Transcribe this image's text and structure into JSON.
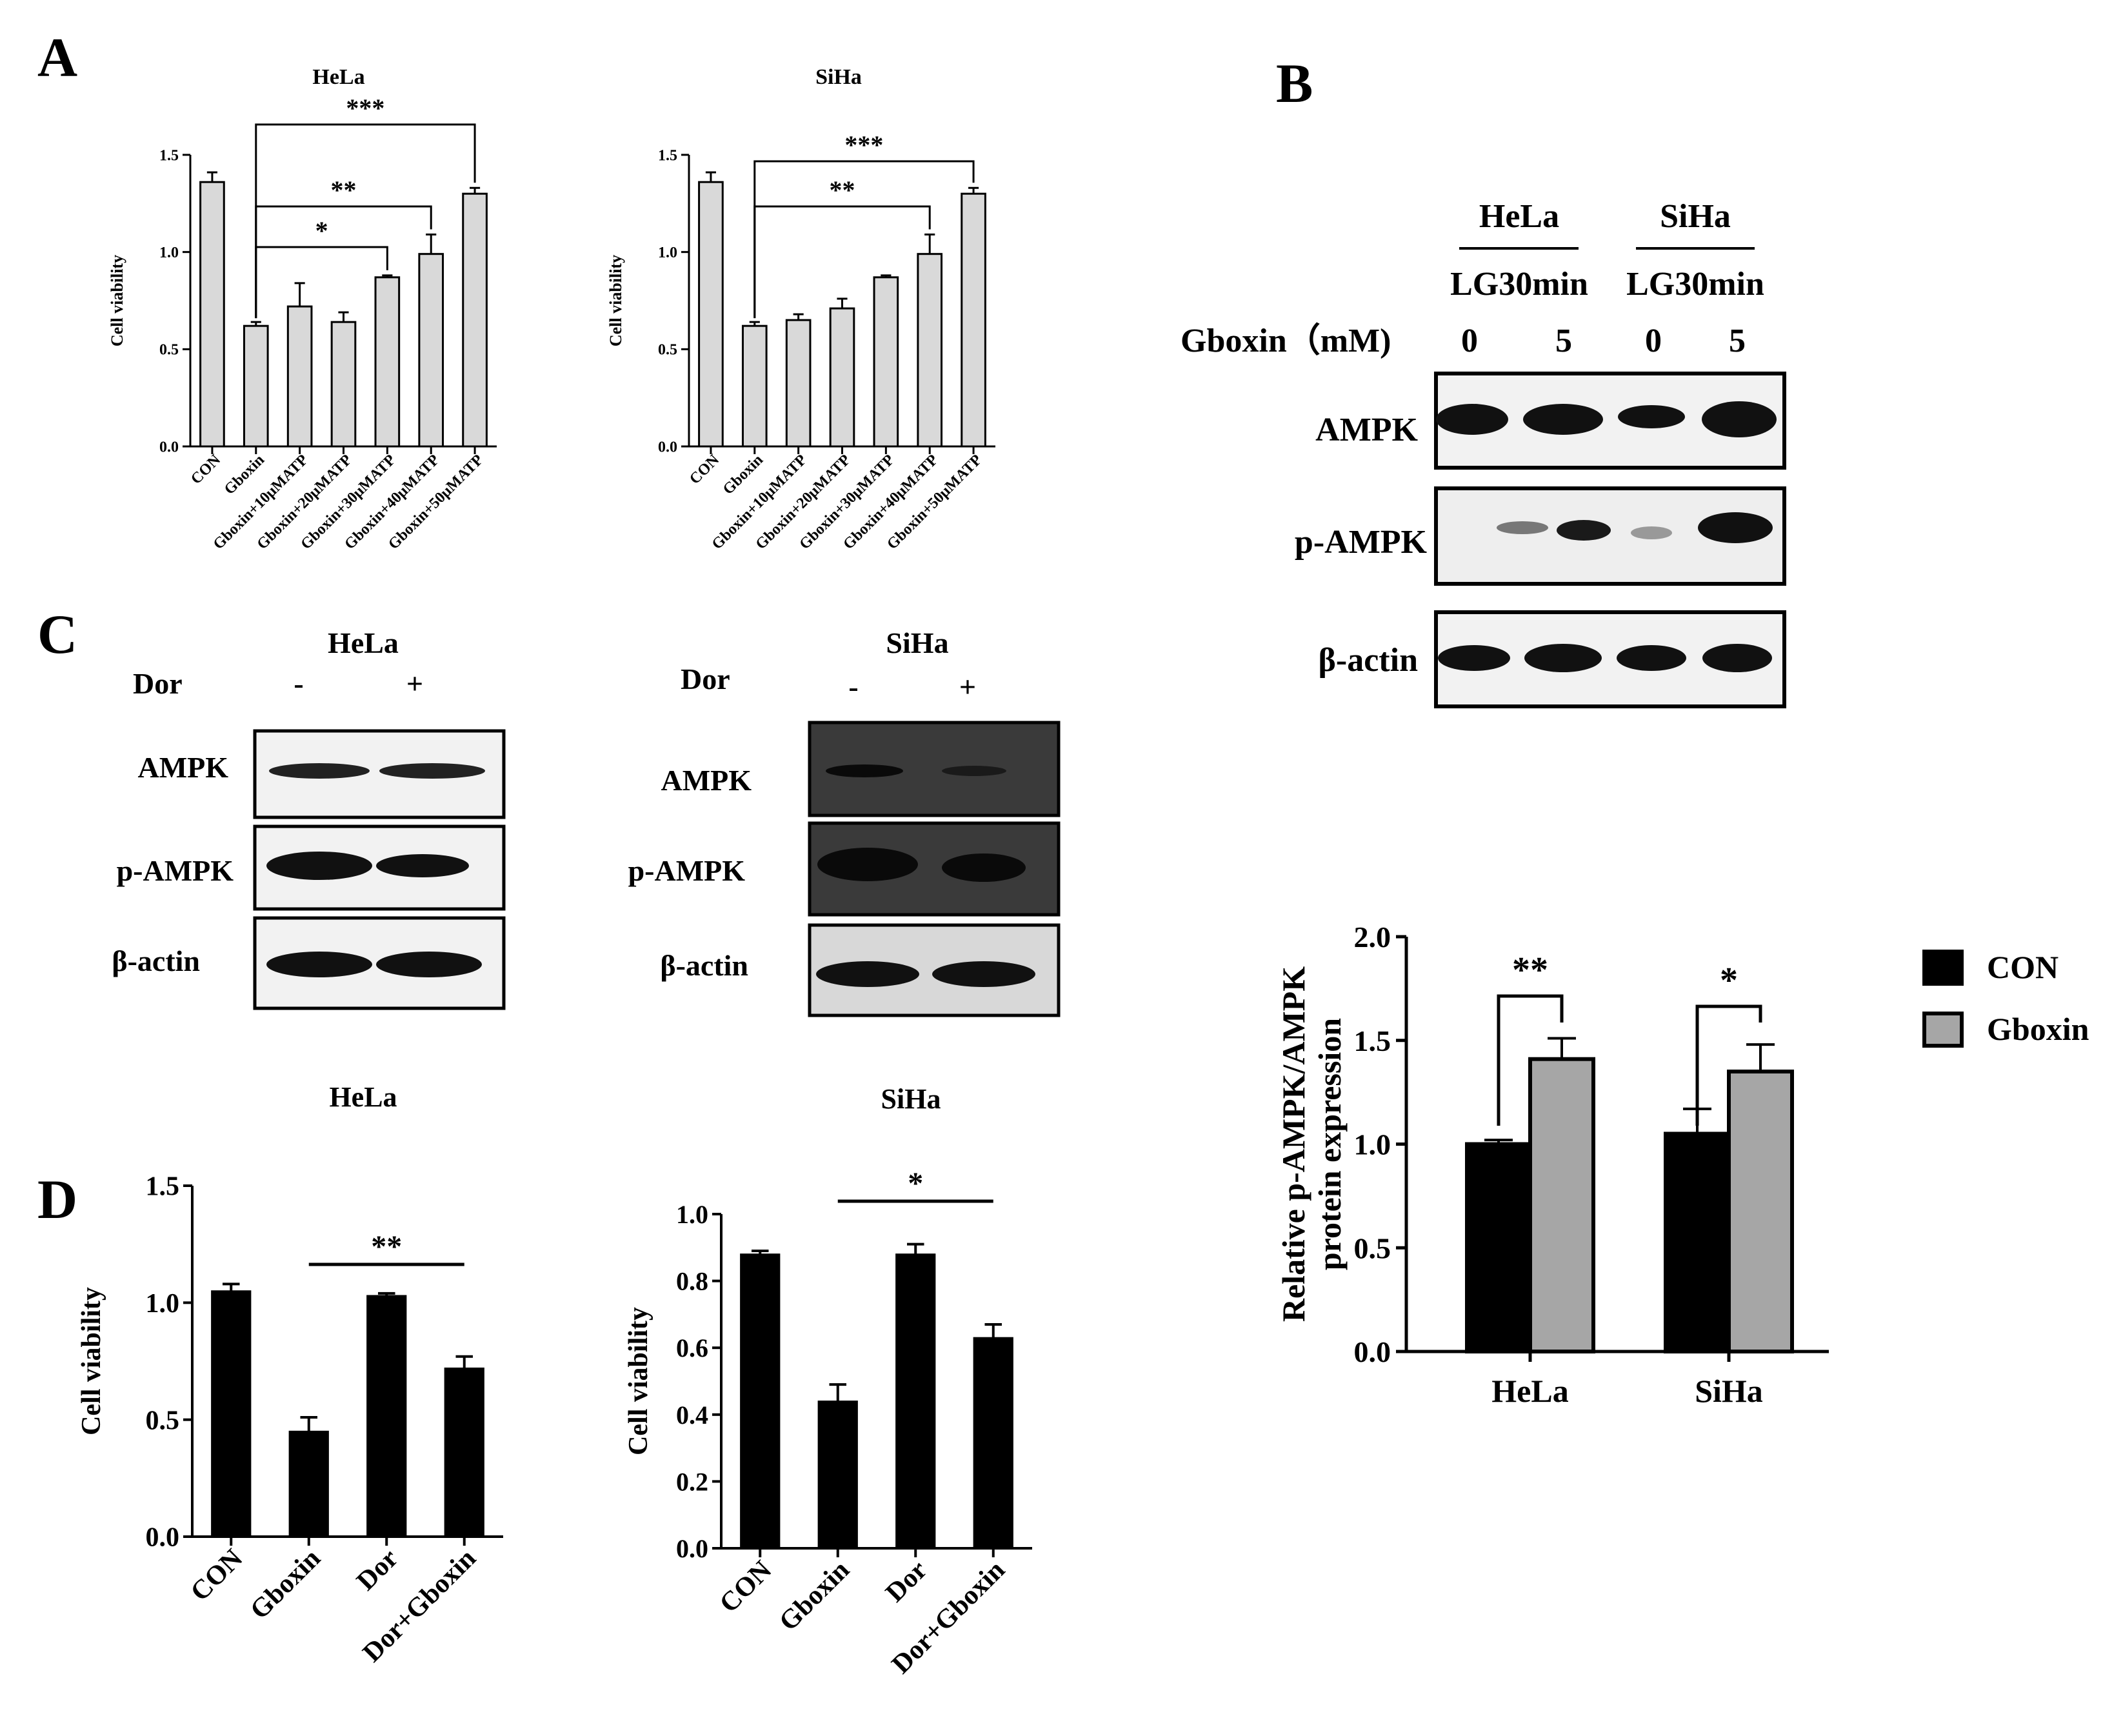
{
  "panels": {
    "A": {
      "letter": "A"
    },
    "B": {
      "letter": "B"
    },
    "C": {
      "letter": "C"
    },
    "D": {
      "letter": "D"
    }
  },
  "colors": {
    "black": "#000000",
    "light_bar": "#d9d9d9",
    "gray_bar": "#a6a6a6",
    "blot_bg": "#f2f2f2",
    "band": "#111111"
  },
  "blots": {
    "b": {
      "groups": [
        "HeLa",
        "SiHa"
      ],
      "condition": [
        "LG30min",
        "LG30min"
      ],
      "treatment_label": "Gboxin（mM)",
      "doses": [
        "0",
        "5",
        "0",
        "5"
      ],
      "rows": [
        "AMPK",
        "p-AMPK",
        "β-actin"
      ]
    },
    "c_hela": {
      "title": "HeLa",
      "treatment_label": "Dor",
      "lanes": [
        "-",
        "+"
      ],
      "rows": [
        "AMPK",
        "p-AMPK",
        "β-actin"
      ]
    },
    "c_siha": {
      "title": "SiHa",
      "treatment_label": "Dor",
      "lanes": [
        "-",
        "+"
      ],
      "rows": [
        "AMPK",
        "p-AMPK",
        "β-actin"
      ]
    }
  },
  "chart_data": [
    {
      "id": "A-HeLa",
      "type": "bar",
      "title": "HeLa",
      "ylabel": "Cell viability",
      "xlabel": "",
      "categories": [
        "CON",
        "Gboxin",
        "Gboxin+10μMATP",
        "Gboxin+20μMATP",
        "Gboxin+30μMATP",
        "Gboxin+40μMATP",
        "Gboxin+50μMATP"
      ],
      "values": [
        1.36,
        0.62,
        0.72,
        0.64,
        0.87,
        0.99,
        1.3
      ],
      "errors": [
        0.05,
        0.02,
        0.12,
        0.05,
        0.01,
        0.1,
        0.03
      ],
      "ylim": [
        0,
        1.5
      ],
      "yticks": [
        "0.0",
        "0.5",
        "1.0",
        "1.5"
      ],
      "significance": [
        {
          "from": 1,
          "to": 4,
          "label": "*"
        },
        {
          "from": 1,
          "to": 5,
          "label": "**"
        },
        {
          "from": 1,
          "to": 6,
          "label": "***"
        }
      ]
    },
    {
      "id": "A-SiHa",
      "type": "bar",
      "title": "SiHa",
      "ylabel": "Cell viability",
      "xlabel": "",
      "categories": [
        "CON",
        "Gboxin",
        "Gboxin+10μMATP",
        "Gboxin+20μMATP",
        "Gboxin+30μMATP",
        "Gboxin+40μMATP",
        "Gboxin+50μMATP"
      ],
      "values": [
        1.36,
        0.62,
        0.65,
        0.71,
        0.87,
        0.99,
        1.3
      ],
      "errors": [
        0.05,
        0.02,
        0.03,
        0.05,
        0.01,
        0.1,
        0.03
      ],
      "ylim": [
        0,
        1.5
      ],
      "yticks": [
        "0.0",
        "0.5",
        "1.0",
        "1.5"
      ],
      "significance": [
        {
          "from": 1,
          "to": 5,
          "label": "**"
        },
        {
          "from": 1,
          "to": 6,
          "label": "***"
        }
      ]
    },
    {
      "id": "B-quant",
      "type": "bar",
      "title": "",
      "ylabel": "Relative p-AMPK/AMPK protein expression",
      "xlabel": "",
      "categories": [
        "HeLa",
        "SiHa"
      ],
      "series": [
        {
          "name": "CON",
          "values": [
            1.0,
            1.05
          ],
          "errors": [
            0.02,
            0.12
          ]
        },
        {
          "name": "Gboxin",
          "values": [
            1.41,
            1.35
          ],
          "errors": [
            0.1,
            0.13
          ]
        }
      ],
      "ylim": [
        0,
        2.0
      ],
      "yticks": [
        "0.0",
        "0.5",
        "1.0",
        "1.5",
        "2.0"
      ],
      "legend": "right",
      "significance": [
        {
          "category": 0,
          "label": "**"
        },
        {
          "category": 1,
          "label": "*"
        }
      ]
    },
    {
      "id": "D-HeLa",
      "type": "bar",
      "title": "HeLa",
      "ylabel": "Cell viability",
      "xlabel": "",
      "categories": [
        "CON",
        "Gboxin",
        "Dor",
        "Dor+Gboxin"
      ],
      "values": [
        1.05,
        0.45,
        1.03,
        0.72
      ],
      "errors": [
        0.03,
        0.06,
        0.01,
        0.05
      ],
      "ylim": [
        0,
        1.5
      ],
      "yticks": [
        "0.0",
        "0.5",
        "1.0",
        "1.5"
      ],
      "significance": [
        {
          "from": 1,
          "to": 3,
          "label": "**"
        }
      ]
    },
    {
      "id": "D-SiHa",
      "type": "bar",
      "title": "SiHa",
      "ylabel": "Cell viability",
      "xlabel": "",
      "categories": [
        "CON",
        "Gboxin",
        "Dor",
        "Dor+Gboxin"
      ],
      "values": [
        0.88,
        0.44,
        0.88,
        0.63
      ],
      "errors": [
        0.01,
        0.05,
        0.03,
        0.04
      ],
      "ylim": [
        0,
        1.0
      ],
      "yticks": [
        "0.0",
        "0.2",
        "0.4",
        "0.6",
        "0.8",
        "1.0"
      ],
      "significance": [
        {
          "from": 1,
          "to": 3,
          "label": "*"
        }
      ]
    }
  ]
}
